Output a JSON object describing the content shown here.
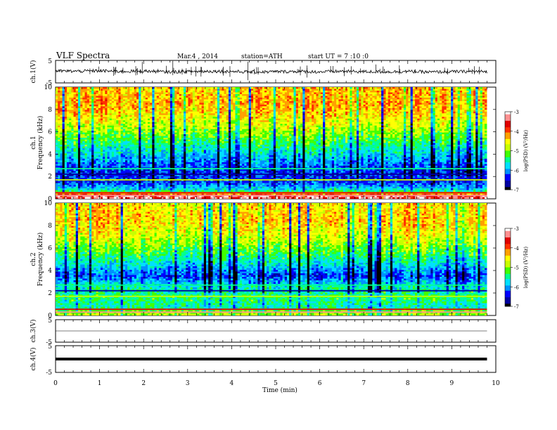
{
  "header": {
    "title": "VLF  Spectra",
    "date": "Mar.4  , 2014",
    "station": "station=ATH",
    "start": "start  UT  =   7  :10 :0"
  },
  "colors": {
    "background": "#ffffff",
    "axis": "#000000",
    "trace": "#000000",
    "colormap": [
      "#000000",
      "#0000a0",
      "#0000ff",
      "#0090ff",
      "#00e0ff",
      "#00ff90",
      "#40ff00",
      "#c8ff00",
      "#ffff00",
      "#ffa000",
      "#ff3000",
      "#e00000",
      "#ff9090",
      "#ffffff"
    ]
  },
  "chart_data": [
    {
      "type": "line",
      "name": "ch1-waveform",
      "ylabel": "ch.1(V)",
      "xlim": [
        0,
        10
      ],
      "ylim": [
        -5,
        5
      ],
      "yticks": [
        "5",
        "-5"
      ],
      "x": [
        0,
        0.5,
        1,
        1.5,
        2,
        2.5,
        3,
        3.5,
        4,
        4.5,
        5,
        5.5,
        6,
        6.5,
        7,
        7.5,
        8,
        8.5,
        9,
        9.5,
        9.8
      ],
      "values": [
        0.3,
        0.2,
        0.4,
        0.1,
        0.3,
        -0.1,
        0.0,
        0.2,
        0.1,
        -0.2,
        0.0,
        0.1,
        -0.1,
        0.2,
        0.0,
        -0.1,
        0.1,
        -0.2,
        0.0,
        0.1,
        0.0
      ],
      "spikes_note": ""
    },
    {
      "type": "heatmap",
      "name": "ch1-spectrogram",
      "ylabel": "Frequency  (kHz)",
      "channel_label": "ch.1",
      "xlim": [
        0,
        10
      ],
      "ylim": [
        0,
        10
      ],
      "yticks": [
        "0",
        "2",
        "4",
        "6",
        "8",
        "10"
      ],
      "x": [
        0,
        1,
        2,
        3,
        4,
        5,
        6,
        7,
        8,
        9,
        9.8
      ],
      "freq_kHz": [
        0.25,
        0.75,
        1.5,
        2.5,
        3.5,
        4.5,
        5.5,
        6.5,
        7.5,
        8.5,
        9.5
      ],
      "logPSD": [
        [
          -3.3,
          -3.3,
          -3.3,
          -3.3,
          -3.3,
          -3.3,
          -3.3,
          -3.3,
          -3.3,
          -3.3,
          -3.3
        ],
        [
          -5.6,
          -5.6,
          -5.7,
          -5.6,
          -5.6,
          -5.7,
          -5.6,
          -5.6,
          -5.7,
          -5.6,
          -5.6
        ],
        [
          -6.3,
          -6.3,
          -6.4,
          -6.3,
          -6.2,
          -6.3,
          -6.3,
          -6.4,
          -6.3,
          -6.3,
          -6.3
        ],
        [
          -6.4,
          -6.3,
          -6.4,
          -6.4,
          -6.3,
          -6.4,
          -6.4,
          -6.3,
          -6.4,
          -6.4,
          -6.4
        ],
        [
          -6.0,
          -5.9,
          -6.0,
          -6.1,
          -6.0,
          -5.9,
          -6.0,
          -6.0,
          -5.9,
          -6.0,
          -6.0
        ],
        [
          -5.6,
          -5.5,
          -5.6,
          -5.7,
          -5.6,
          -5.5,
          -5.6,
          -5.6,
          -5.5,
          -5.6,
          -5.6
        ],
        [
          -5.2,
          -5.1,
          -5.2,
          -5.3,
          -5.2,
          -5.1,
          -5.2,
          -5.2,
          -5.1,
          -5.2,
          -5.2
        ],
        [
          -4.8,
          -4.7,
          -4.9,
          -4.9,
          -4.8,
          -4.7,
          -4.8,
          -4.8,
          -4.7,
          -4.8,
          -4.8
        ],
        [
          -4.5,
          -4.3,
          -4.6,
          -4.6,
          -4.5,
          -4.4,
          -4.5,
          -4.5,
          -4.4,
          -4.5,
          -4.5
        ],
        [
          -4.3,
          -4.1,
          -4.4,
          -4.4,
          -4.3,
          -4.2,
          -4.3,
          -4.3,
          -4.2,
          -4.3,
          -4.3
        ],
        [
          -4.4,
          -4.2,
          -4.5,
          -4.5,
          -4.4,
          -4.3,
          -4.4,
          -4.4,
          -4.3,
          -4.4,
          -4.4
        ]
      ]
    },
    {
      "type": "heatmap",
      "name": "ch2-spectrogram",
      "ylabel": "Frequency  (kHz)",
      "channel_label": "ch.2",
      "xlim": [
        0,
        10
      ],
      "ylim": [
        0,
        10
      ],
      "yticks": [
        "0",
        "2",
        "4",
        "6",
        "8",
        "10"
      ],
      "x": [
        0,
        1,
        2,
        3,
        4,
        5,
        6,
        7,
        8,
        9,
        9.8
      ],
      "freq_kHz": [
        0.25,
        0.75,
        1.5,
        2.5,
        3.5,
        4.5,
        5.5,
        6.5,
        7.5,
        8.5,
        9.5
      ],
      "logPSD": [
        [
          -4.9,
          -4.9,
          -4.9,
          -4.9,
          -4.9,
          -4.9,
          -4.9,
          -4.9,
          -4.9,
          -4.9,
          -4.9
        ],
        [
          -5.6,
          -5.6,
          -5.5,
          -5.6,
          -5.6,
          -5.6,
          -5.5,
          -5.6,
          -5.6,
          -5.6,
          -5.6
        ],
        [
          -5.3,
          -5.3,
          -5.4,
          -5.3,
          -5.3,
          -5.3,
          -5.4,
          -5.3,
          -5.3,
          -5.3,
          -5.3
        ],
        [
          -5.6,
          -5.5,
          -5.6,
          -5.6,
          -5.5,
          -5.6,
          -5.6,
          -5.5,
          -5.6,
          -5.6,
          -5.6
        ],
        [
          -6.3,
          -6.2,
          -6.3,
          -6.3,
          -6.2,
          -6.3,
          -6.3,
          -6.2,
          -6.3,
          -6.3,
          -6.3
        ],
        [
          -5.8,
          -5.7,
          -5.8,
          -5.9,
          -5.8,
          -5.7,
          -5.8,
          -5.8,
          -5.7,
          -5.8,
          -5.8
        ],
        [
          -5.3,
          -5.2,
          -5.3,
          -5.4,
          -5.3,
          -5.2,
          -5.3,
          -5.3,
          -5.2,
          -5.3,
          -5.3
        ],
        [
          -4.9,
          -4.8,
          -4.9,
          -5.0,
          -4.9,
          -4.8,
          -4.9,
          -4.9,
          -4.8,
          -4.9,
          -4.9
        ],
        [
          -4.6,
          -4.4,
          -4.7,
          -4.7,
          -4.6,
          -4.5,
          -4.6,
          -4.6,
          -4.5,
          -4.6,
          -4.6
        ],
        [
          -4.4,
          -4.2,
          -4.5,
          -4.5,
          -4.4,
          -4.3,
          -4.4,
          -4.4,
          -4.3,
          -4.4,
          -4.4
        ],
        [
          -4.5,
          -4.3,
          -4.6,
          -4.6,
          -4.5,
          -4.4,
          -4.5,
          -4.5,
          -4.4,
          -4.5,
          -4.5
        ]
      ]
    },
    {
      "type": "line",
      "name": "ch3-waveform",
      "ylabel": "ch.3(V)",
      "xlim": [
        0,
        10
      ],
      "ylim": [
        -5,
        5
      ],
      "yticks": [
        "5",
        "-5"
      ],
      "x": [
        0,
        9.8
      ],
      "values": [
        0.0,
        0.0
      ]
    },
    {
      "type": "line",
      "name": "ch4-waveform",
      "ylabel": "ch.4(V)",
      "xlim": [
        0,
        10
      ],
      "ylim": [
        -5,
        5
      ],
      "yticks": [
        "5",
        "-5"
      ],
      "x": [
        0,
        9.8
      ],
      "values": [
        0.0,
        0.0
      ]
    }
  ],
  "colorbars": [
    {
      "label": "log(PSD) (V²/Hz)",
      "range": [
        -7,
        -3
      ],
      "ticks": [
        "-3",
        "-4",
        "-5",
        "-6",
        "-7"
      ]
    },
    {
      "label": "log(PSD) (V²/Hz)",
      "range": [
        -7,
        -3
      ],
      "ticks": [
        "-3",
        "-4",
        "-5",
        "-6",
        "-7"
      ]
    }
  ],
  "xaxis": {
    "label": "Time  (min)",
    "ticks": [
      "0",
      "1",
      "2",
      "3",
      "4",
      "5",
      "6",
      "7",
      "8",
      "9",
      "10"
    ]
  }
}
